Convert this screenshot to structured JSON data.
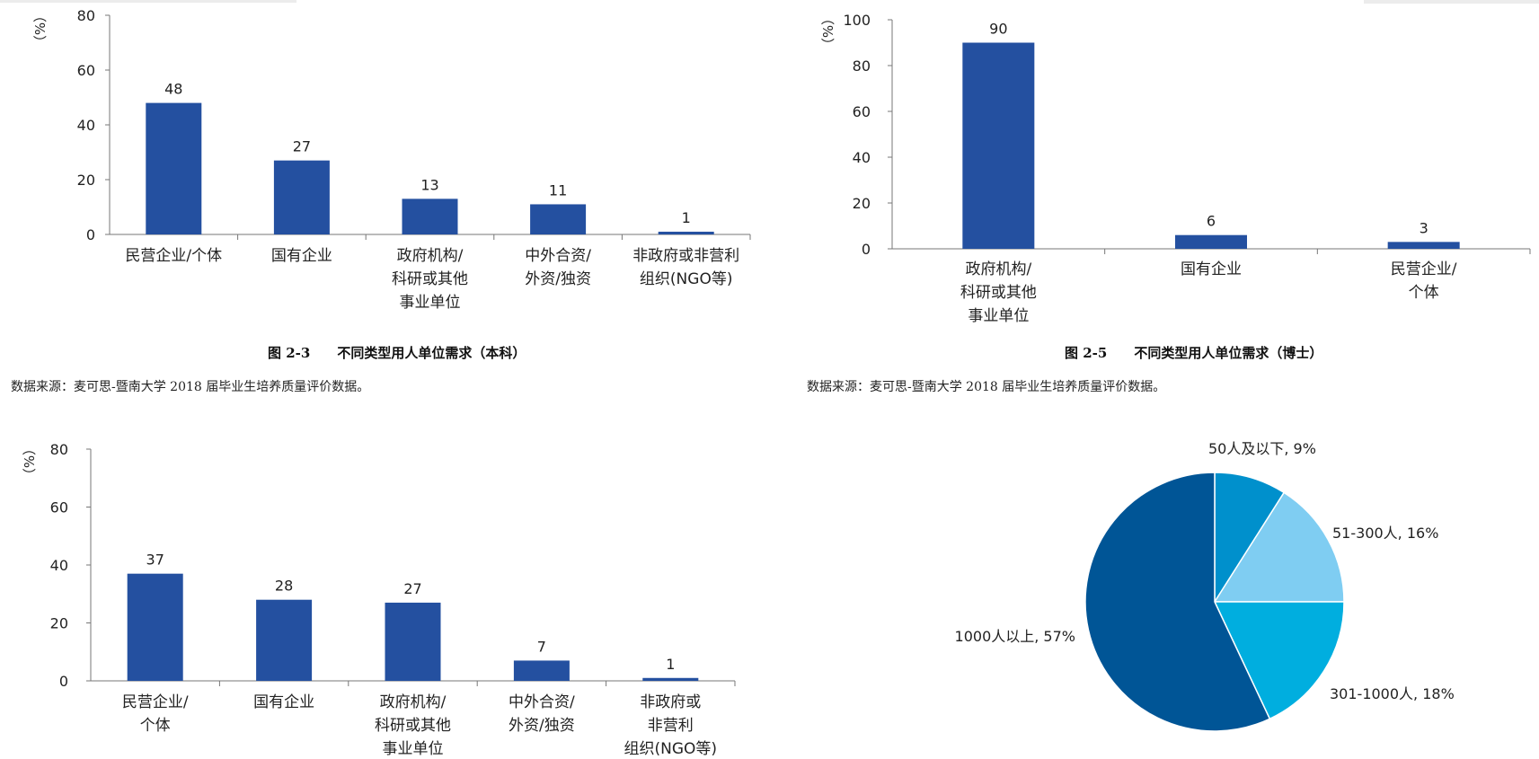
{
  "chart_data": [
    {
      "type": "bar",
      "ylabel": "（%）",
      "ylim": [
        0,
        80
      ],
      "yticks": [
        0,
        20,
        40,
        60,
        80
      ],
      "categories": [
        "民营企业/个体",
        "国有企业",
        "政府机构/\n科研或其他\n事业单位",
        "中外合资/\n外资/独资",
        "非政府或非营利\n组织(NGO等)"
      ],
      "values": [
        48,
        27,
        13,
        11,
        1
      ],
      "caption": "图 2-3　　不同类型用人单位需求（本科）",
      "source": "数据来源：麦可思-暨南大学 2018 届毕业生培养质量评价数据。",
      "color": "#2450A0"
    },
    {
      "type": "bar",
      "ylabel": "（%）",
      "ylim": [
        0,
        100
      ],
      "yticks": [
        0,
        20,
        40,
        60,
        80,
        100
      ],
      "categories": [
        "政府机构/\n科研或其他\n事业单位",
        "国有企业",
        "民营企业/\n个体"
      ],
      "values": [
        90,
        6,
        3
      ],
      "caption": "图 2-5　　不同类型用人单位需求（博士）",
      "source": "数据来源：麦可思-暨南大学 2018 届毕业生培养质量评价数据。",
      "color": "#2450A0"
    },
    {
      "type": "bar",
      "ylabel": "（%）",
      "ylim": [
        0,
        80
      ],
      "yticks": [
        0,
        20,
        40,
        60,
        80
      ],
      "categories": [
        "民营企业/\n个体",
        "国有企业",
        "政府机构/\n科研或其他\n事业单位",
        "中外合资/\n外资/独资",
        "非政府或\n非营利\n组织(NGO等)"
      ],
      "values": [
        37,
        28,
        27,
        7,
        1
      ],
      "color": "#2450A0"
    },
    {
      "type": "pie",
      "slices": [
        {
          "label": "50人及以下, 9%",
          "value": 9,
          "color": "#0090CC"
        },
        {
          "label": "51-300人, 16%",
          "value": 16,
          "color": "#7FCDF2"
        },
        {
          "label": "301-1000人, 18%",
          "value": 18,
          "color": "#00AEDF"
        },
        {
          "label": "1000人以上, 57%",
          "value": 57,
          "color": "#005596"
        }
      ]
    }
  ]
}
